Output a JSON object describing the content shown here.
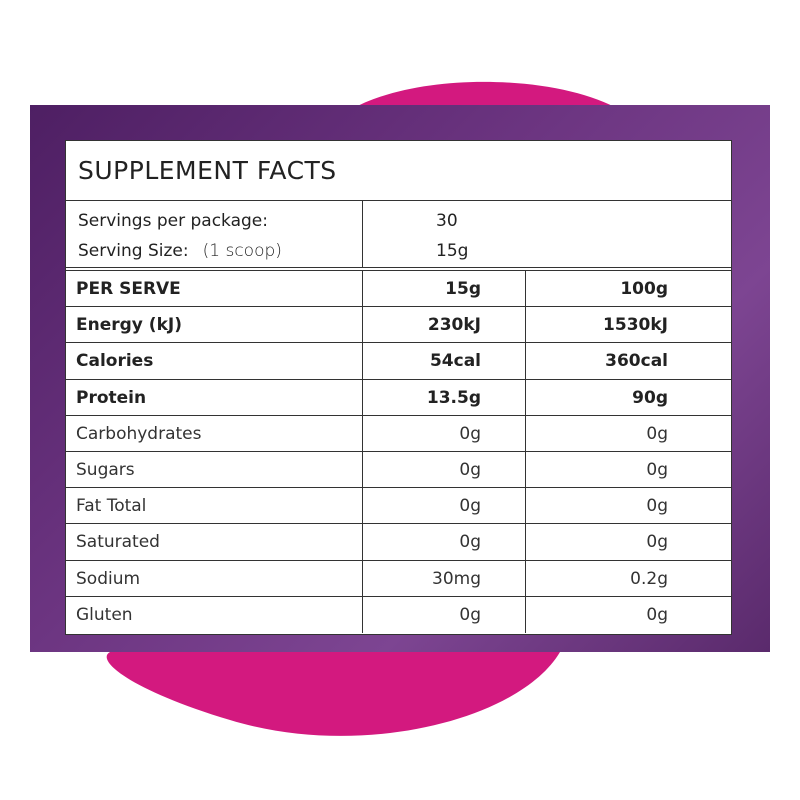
{
  "title": "SUPPLEMENT FACTS",
  "servings": [
    {
      "label": "Servings per package:",
      "value": "30"
    },
    {
      "label": "Serving Size:",
      "note": "(1 scoop)",
      "value": "15g"
    }
  ],
  "table": {
    "rows": [
      [
        "PER SERVE",
        "15g",
        "100g"
      ],
      [
        "Energy (kJ)",
        "230kJ",
        "1530kJ"
      ],
      [
        "Calories",
        "54cal",
        "360cal"
      ],
      [
        "Protein",
        "13.5g",
        "90g"
      ],
      [
        "Carbohydrates",
        "0g",
        "0g"
      ],
      [
        "Sugars",
        "0g",
        "0g"
      ],
      [
        "Fat Total",
        "0g",
        "0g"
      ],
      [
        "Saturated",
        "0g",
        "0g"
      ],
      [
        "Sodium",
        "30mg",
        "0.2g"
      ],
      [
        "Gluten",
        "0g",
        "0g"
      ]
    ]
  }
}
